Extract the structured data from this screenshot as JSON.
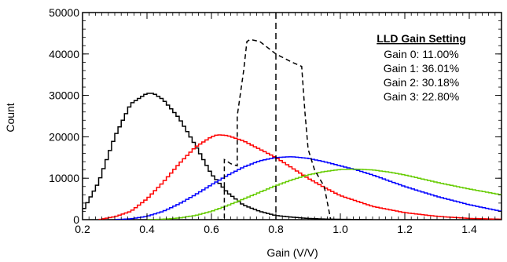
{
  "chart_data": {
    "type": "line",
    "xlabel": "Gain (V/V)",
    "ylabel": "Count",
    "xlim": [
      0.2,
      1.5
    ],
    "ylim": [
      0,
      50000
    ],
    "x_ticks": [
      "0.2",
      "0.4",
      "0.6",
      "0.8",
      "1.0",
      "1.2",
      "1.4"
    ],
    "y_ticks": [
      "0",
      "10000",
      "20000",
      "30000",
      "40000",
      "50000"
    ],
    "legend": {
      "title": "LLD Gain Setting",
      "entries": [
        "Gain 0: 11.00%",
        "Gain 1: 36.01%",
        "Gain 2: 30.18%",
        "Gain 3: 22.80%"
      ],
      "placement": "top-right"
    },
    "series": [
      {
        "color": "#000000",
        "style": "solid",
        "x": [
          0.2,
          0.25,
          0.3,
          0.35,
          0.4,
          0.42,
          0.45,
          0.5,
          0.55,
          0.6,
          0.65,
          0.7,
          0.75,
          0.8,
          0.85,
          0.9,
          0.95,
          1.0,
          1.1
        ],
        "y": [
          2000,
          9000,
          20000,
          28000,
          30500,
          30500,
          29000,
          24500,
          18000,
          11000,
          6500,
          3500,
          2000,
          1000,
          600,
          300,
          150,
          80,
          0
        ]
      },
      {
        "color": "#ff0000",
        "style": "solid",
        "x": [
          0.25,
          0.3,
          0.35,
          0.4,
          0.45,
          0.5,
          0.55,
          0.6,
          0.62,
          0.65,
          0.7,
          0.75,
          0.8,
          0.85,
          0.9,
          0.95,
          1.0,
          1.1,
          1.2,
          1.3,
          1.4,
          1.5
        ],
        "y": [
          0,
          700,
          2000,
          5000,
          9000,
          13500,
          17500,
          20000,
          20500,
          20300,
          19000,
          17000,
          15000,
          12500,
          10000,
          7800,
          5800,
          3200,
          1700,
          800,
          300,
          100
        ]
      },
      {
        "color": "#0000ff",
        "style": "solid",
        "x": [
          0.3,
          0.35,
          0.4,
          0.45,
          0.5,
          0.55,
          0.6,
          0.65,
          0.7,
          0.75,
          0.8,
          0.85,
          0.9,
          0.95,
          1.0,
          1.05,
          1.1,
          1.2,
          1.3,
          1.4,
          1.5
        ],
        "y": [
          0,
          200,
          800,
          2000,
          3800,
          6000,
          8400,
          10700,
          12700,
          14200,
          15000,
          15200,
          14800,
          14000,
          13000,
          12000,
          10800,
          8000,
          5600,
          3600,
          2000
        ]
      },
      {
        "color": "#66cc00",
        "style": "solid",
        "x": [
          0.4,
          0.45,
          0.5,
          0.55,
          0.6,
          0.65,
          0.7,
          0.75,
          0.8,
          0.85,
          0.9,
          0.95,
          1.0,
          1.05,
          1.1,
          1.15,
          1.2,
          1.3,
          1.4,
          1.5
        ],
        "y": [
          0,
          100,
          400,
          1000,
          2000,
          3400,
          5000,
          6600,
          8200,
          9600,
          10800,
          11600,
          12100,
          12200,
          12000,
          11500,
          10800,
          9000,
          7400,
          6000
        ]
      },
      {
        "color": "#000000",
        "style": "dashed",
        "x": [
          0.62,
          0.64,
          0.64,
          0.66,
          0.68,
          0.68,
          0.7,
          0.71,
          0.72,
          0.75,
          0.8,
          0.85,
          0.88,
          0.89,
          0.9,
          0.92,
          0.95,
          0.97
        ],
        "y": [
          0,
          0,
          14500,
          13500,
          13000,
          25000,
          36000,
          43000,
          43500,
          43000,
          40000,
          38000,
          37000,
          26000,
          17000,
          12000,
          8000,
          0
        ]
      }
    ],
    "vertical_lines": [
      {
        "x": 0.8,
        "style": "dashed",
        "color": "#000000"
      }
    ],
    "grid": false
  }
}
